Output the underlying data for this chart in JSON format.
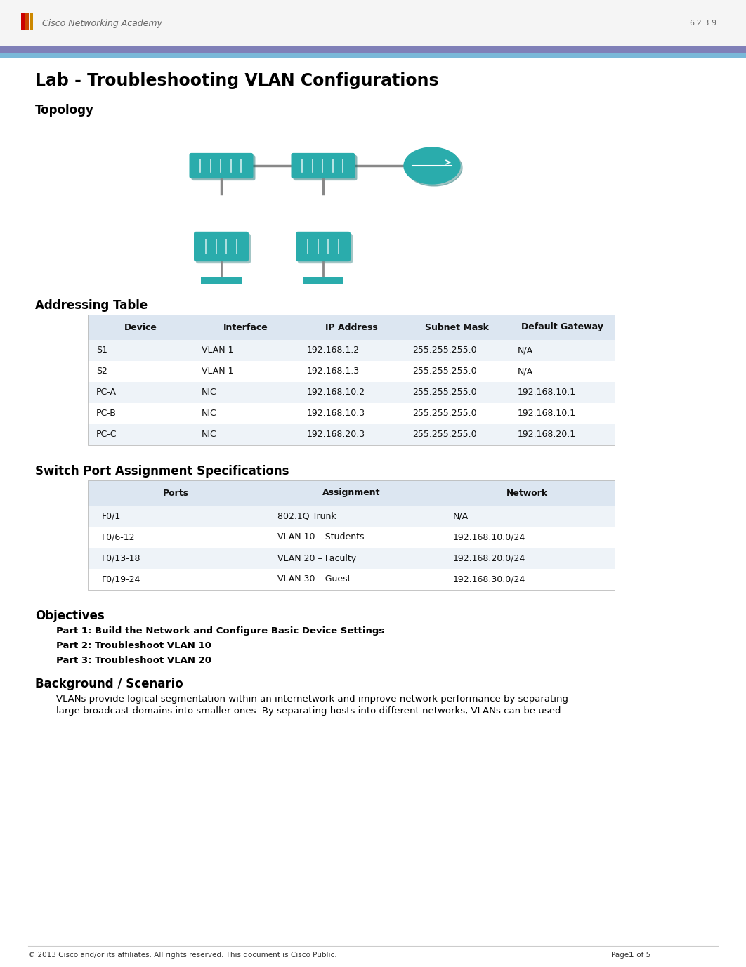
{
  "title": "Lab - Troubleshooting VLAN Configurations",
  "topology_section": "Topology",
  "addressing_table_title": "Addressing Table",
  "addressing_headers": [
    "Device",
    "Interface",
    "IP Address",
    "Subnet Mask",
    "Default Gateway"
  ],
  "addressing_rows": [
    [
      "S1",
      "VLAN 1",
      "192.168.1.2",
      "255.255.255.0",
      "N/A"
    ],
    [
      "S2",
      "VLAN 1",
      "192.168.1.3",
      "255.255.255.0",
      "N/A"
    ],
    [
      "PC-A",
      "NIC",
      "192.168.10.2",
      "255.255.255.0",
      "192.168.10.1"
    ],
    [
      "PC-B",
      "NIC",
      "192.168.10.3",
      "255.255.255.0",
      "192.168.10.1"
    ],
    [
      "PC-C",
      "NIC",
      "192.168.20.3",
      "255.255.255.0",
      "192.168.20.1"
    ]
  ],
  "switch_port_title": "Switch Port Assignment Specifications",
  "switch_headers": [
    "Ports",
    "Assignment",
    "Network"
  ],
  "switch_rows": [
    [
      "F0/1",
      "802.1Q Trunk",
      "N/A"
    ],
    [
      "F0/6-12",
      "VLAN 10 – Students",
      "192.168.10.0/24"
    ],
    [
      "F0/13-18",
      "VLAN 20 – Faculty",
      "192.168.20.0/24"
    ],
    [
      "F0/19-24",
      "VLAN 30 – Guest",
      "192.168.30.0/24"
    ]
  ],
  "objectives_title": "Objectives",
  "objectives": [
    "Part 1: Build the Network and Configure Basic Device Settings",
    "Part 2: Troubleshoot VLAN 10",
    "Part 3: Troubleshoot VLAN 20"
  ],
  "background_title": "Background / Scenario",
  "background_text": "VLANs provide logical segmentation within an internetwork and improve network performance by separating\nlarge broadcast domains into smaller ones. By separating hosts into different networks, VLANs can be used",
  "footer_left": "© 2013 Cisco and/or its affiliates. All rights reserved. This document is Cisco Public.",
  "footer_right": "Page 1 of 5",
  "header_bar_purple": "#8080b8",
  "header_bar_blue": "#7ab8d8",
  "table_header_bg": "#dce6f1",
  "table_row_bg": "#eef3f8",
  "table_bg": "#ffffff",
  "bg_color": "#ffffff",
  "text_color": "#000000",
  "title_fontsize": 17,
  "section_fontsize": 12,
  "body_fontsize": 9.5,
  "table_fontsize": 9,
  "teal": "#2aacac",
  "teal_dark": "#1a8888"
}
